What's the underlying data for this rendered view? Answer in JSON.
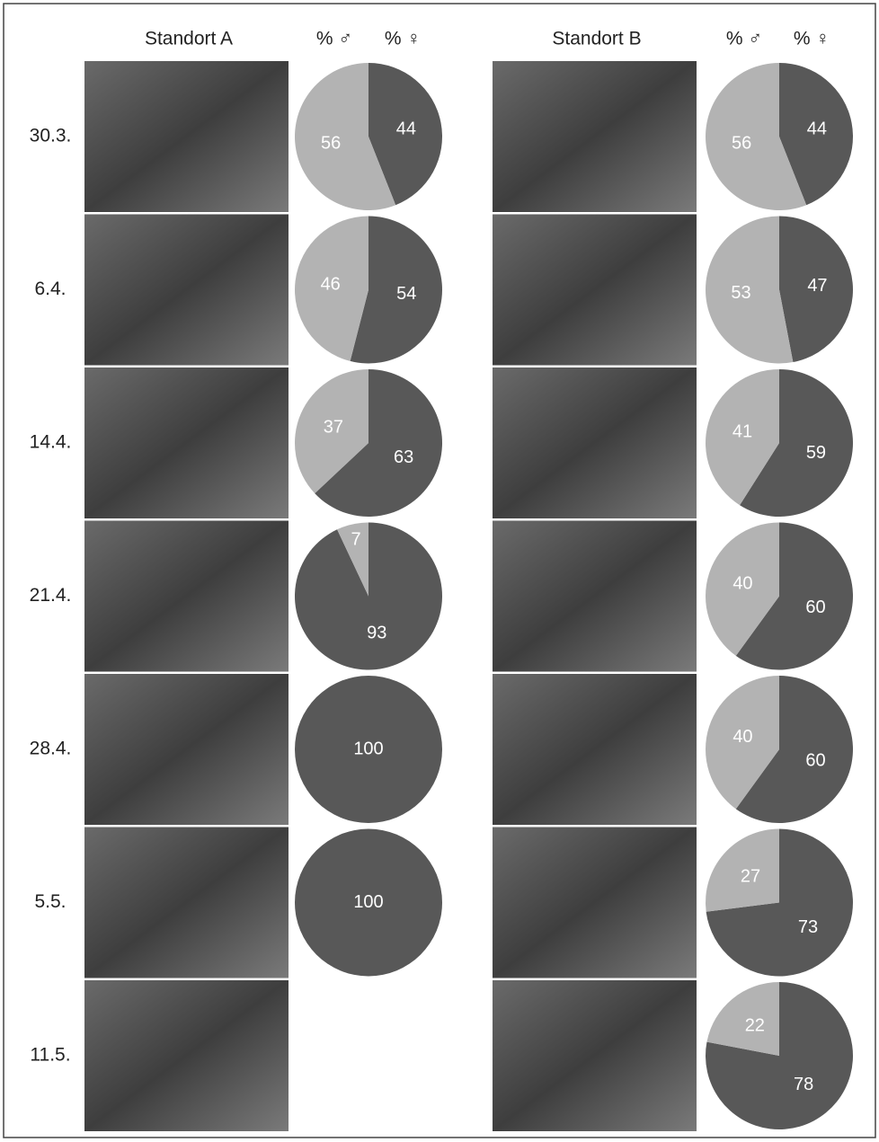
{
  "sites": [
    {
      "name": "Standort A",
      "headers": [
        "% ♂",
        "% ♀"
      ]
    },
    {
      "name": "Standort B",
      "headers": [
        "% ♂",
        "% ♀"
      ]
    }
  ],
  "dates": [
    "30.3.",
    "6.4.",
    "14.4.",
    "21.4.",
    "28.4.",
    "5.5.",
    "11.5."
  ],
  "chart_data": [
    {
      "type": "pie",
      "values": [
        56,
        44
      ],
      "colors": [
        "#b3b3b3",
        "#585858"
      ]
    },
    {
      "type": "pie",
      "values": [
        46,
        54
      ],
      "colors": [
        "#b3b3b3",
        "#585858"
      ]
    },
    {
      "type": "pie",
      "values": [
        37,
        63
      ],
      "colors": [
        "#b3b3b3",
        "#585858"
      ]
    },
    {
      "type": "pie",
      "values": [
        7,
        93
      ],
      "colors": [
        "#b3b3b3",
        "#585858"
      ]
    },
    {
      "type": "pie",
      "values": [
        0,
        100
      ],
      "colors": [
        "#b3b3b3",
        "#585858"
      ]
    },
    {
      "type": "pie",
      "values": [
        0,
        100
      ],
      "colors": [
        "#b3b3b3",
        "#585858"
      ]
    },
    {
      "type": "pie",
      "values": [
        56,
        44
      ],
      "colors": [
        "#b3b3b3",
        "#585858"
      ]
    },
    {
      "type": "pie",
      "values": [
        53,
        47
      ],
      "colors": [
        "#b3b3b3",
        "#585858"
      ]
    },
    {
      "type": "pie",
      "values": [
        41,
        59
      ],
      "colors": [
        "#b3b3b3",
        "#585858"
      ]
    },
    {
      "type": "pie",
      "values": [
        40,
        60
      ],
      "colors": [
        "#b3b3b3",
        "#585858"
      ]
    },
    {
      "type": "pie",
      "values": [
        40,
        60
      ],
      "colors": [
        "#b3b3b3",
        "#585858"
      ]
    },
    {
      "type": "pie",
      "values": [
        27,
        73
      ],
      "colors": [
        "#b3b3b3",
        "#585858"
      ]
    },
    {
      "type": "pie",
      "values": [
        22,
        78
      ],
      "colors": [
        "#b3b3b3",
        "#585858"
      ]
    }
  ]
}
